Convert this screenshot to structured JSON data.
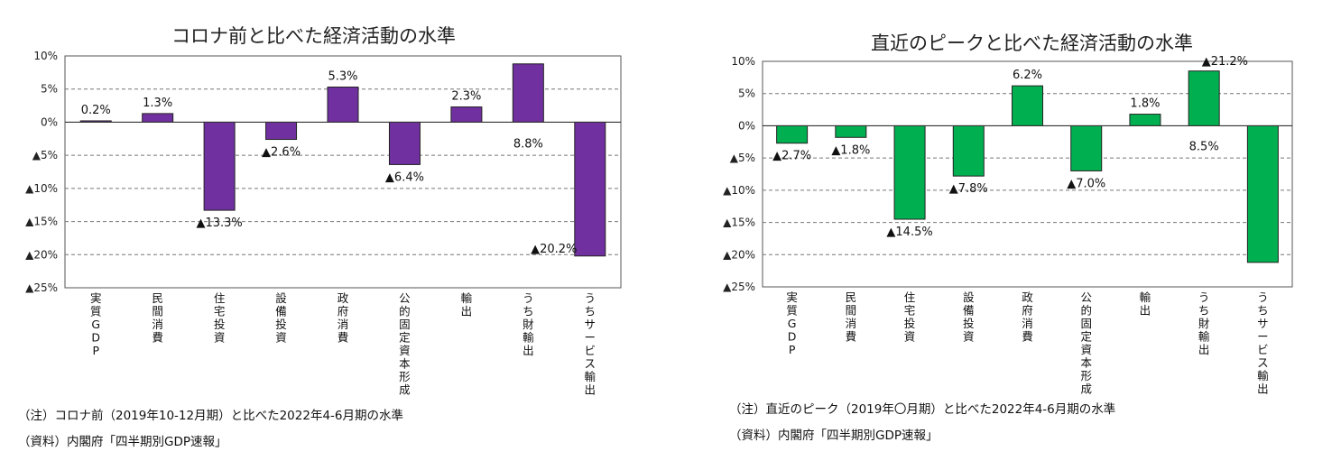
{
  "charts": [
    {
      "title": "コロナ前と比べた経済活動の水準",
      "note": "（注）コロナ前（2019年10-12月期）と比べた2022年4-6月期の水準",
      "source": "（資料）内閣府「四半期別GDP速報」",
      "bar_color": "#7030a0"
    },
    {
      "title": "直近のピークと比べた経済活動の水準",
      "note": "（注）直近のピーク（2019年〇月期）と比べた2022年4-6月期の水準",
      "source": "（資料）内閣府「四半期別GDP速報」",
      "bar_color": "#00b050"
    }
  ],
  "chart_data": [
    {
      "type": "bar",
      "title": "コロナ前と比べた経済活動の水準",
      "categories": [
        "実質GDP",
        "民間消費",
        "住宅投資",
        "設備投資",
        "政府消費",
        "公的固定資本形成",
        "輸出",
        "うち財輸出",
        "うちサービス輸出"
      ],
      "values": [
        0.2,
        1.3,
        -13.3,
        -2.6,
        5.3,
        -6.4,
        2.3,
        8.8,
        -20.2
      ],
      "data_labels": [
        "0.2%",
        "1.3%",
        "▲13.3%",
        "▲2.6%",
        "5.3%",
        "▲6.4%",
        "2.3%",
        "8.8%",
        "▲20.2%"
      ],
      "ylim": [
        -25,
        10
      ],
      "yticks": [
        10,
        5,
        0,
        -5,
        -10,
        -15,
        -20,
        -25
      ],
      "ytick_labels": [
        "10%",
        "5%",
        "0%",
        "▲5%",
        "▲10%",
        "▲15%",
        "▲20%",
        "▲25%"
      ],
      "grid": "dashed",
      "color": "#7030a0"
    },
    {
      "type": "bar",
      "title": "直近のピークと比べた経済活動の水準",
      "categories": [
        "実質GDP",
        "民間消費",
        "住宅投資",
        "設備投資",
        "政府消費",
        "公的固定資本形成",
        "輸出",
        "うち財輸出",
        "うちサービス輸出"
      ],
      "values": [
        -2.7,
        -1.8,
        -14.5,
        -7.8,
        6.2,
        -7.0,
        1.8,
        8.5,
        -21.2
      ],
      "data_labels": [
        "▲2.7%",
        "▲1.8%",
        "▲14.5%",
        "▲7.8%",
        "6.2%",
        "▲7.0%",
        "1.8%",
        "8.5%",
        "▲21.2%"
      ],
      "ylim": [
        -25,
        10
      ],
      "yticks": [
        10,
        5,
        0,
        -5,
        -10,
        -15,
        -20,
        -25
      ],
      "ytick_labels": [
        "10%",
        "5%",
        "0%",
        "▲5%",
        "▲10%",
        "▲15%",
        "▲20%",
        "▲25%"
      ],
      "grid": "dashed",
      "color": "#00b050"
    }
  ]
}
